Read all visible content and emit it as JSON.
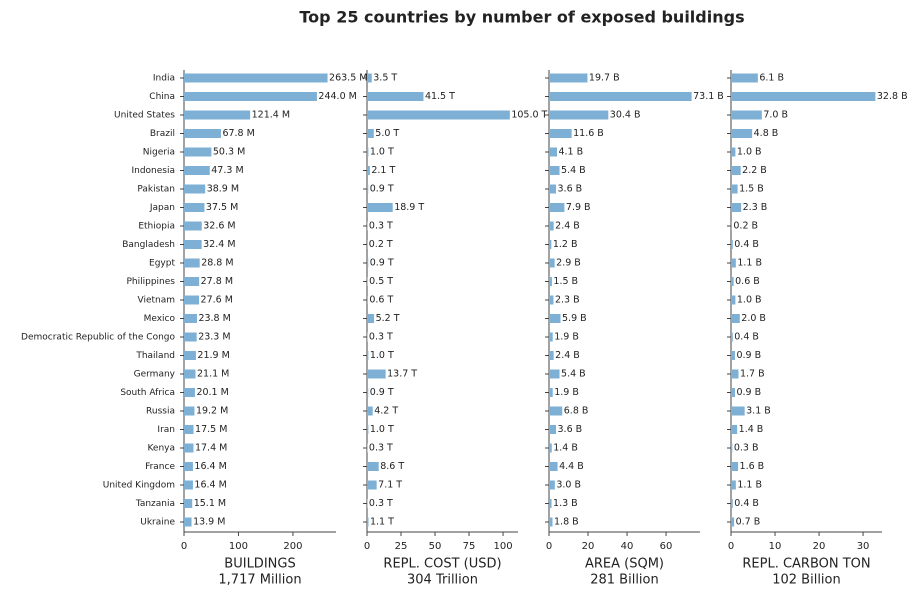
{
  "title": "Top 25 countries by number of exposed buildings",
  "chart_data": [
    {
      "type": "barh",
      "color": "#7eb0d5",
      "xlabel": "BUILDINGS",
      "xlabel_total": "1,717 Million",
      "categories": [
        "India",
        "China",
        "United States",
        "Brazil",
        "Nigeria",
        "Indonesia",
        "Pakistan",
        "Japan",
        "Ethiopia",
        "Bangladesh",
        "Egypt",
        "Philippines",
        "Vietnam",
        "Mexico",
        "Democratic Republic of the Congo",
        "Thailand",
        "Germany",
        "South Africa",
        "Russia",
        "Iran",
        "Kenya",
        "France",
        "United Kingdom",
        "Tanzania",
        "Ukraine"
      ],
      "values": [
        263.5,
        244.0,
        121.4,
        67.8,
        50.3,
        47.3,
        38.9,
        37.5,
        32.6,
        32.4,
        28.8,
        27.8,
        27.6,
        23.8,
        23.3,
        21.9,
        21.1,
        20.1,
        19.2,
        17.5,
        17.4,
        16.4,
        16.4,
        15.1,
        13.9
      ],
      "value_labels": [
        "263.5 M",
        "244.0 M",
        "121.4 M",
        "67.8 M",
        "50.3 M",
        "47.3 M",
        "38.9 M",
        "37.5 M",
        "32.6 M",
        "32.4 M",
        "28.8 M",
        "27.8 M",
        "27.6 M",
        "23.8 M",
        "23.3 M",
        "21.9 M",
        "21.1 M",
        "20.1 M",
        "19.2 M",
        "17.5 M",
        "17.4 M",
        "16.4 M",
        "16.4 M",
        "15.1 M",
        "13.9 M"
      ],
      "xlim": [
        0,
        279
      ],
      "xticks": [
        0,
        100,
        200
      ]
    },
    {
      "type": "barh",
      "color": "#7eb0d5",
      "xlabel": "REPL. COST (USD)",
      "xlabel_total": "304 Trillion",
      "values": [
        3.5,
        41.5,
        105.0,
        5.0,
        1.0,
        2.1,
        0.9,
        18.9,
        0.3,
        0.2,
        0.9,
        0.5,
        0.6,
        5.2,
        0.3,
        1.0,
        13.7,
        0.9,
        4.2,
        1.0,
        0.3,
        8.6,
        7.1,
        0.3,
        1.1
      ],
      "value_labels": [
        "3.5 T",
        "41.5 T",
        "105.0 T",
        "5.0 T",
        "1.0 T",
        "2.1 T",
        "0.9 T",
        "18.9 T",
        "0.3 T",
        "0.2 T",
        "0.9 T",
        "0.5 T",
        "0.6 T",
        "5.2 T",
        "0.3 T",
        "1.0 T",
        "13.7 T",
        "0.9 T",
        "4.2 T",
        "1.0 T",
        "0.3 T",
        "8.6 T",
        "7.1 T",
        "0.3 T",
        "1.1 T"
      ],
      "xlim": [
        0,
        111
      ],
      "xticks": [
        0,
        25,
        50,
        75,
        100
      ]
    },
    {
      "type": "barh",
      "color": "#7eb0d5",
      "xlabel": "AREA (SQM)",
      "xlabel_total": "281 Billion",
      "values": [
        19.7,
        73.1,
        30.4,
        11.6,
        4.1,
        5.4,
        3.6,
        7.9,
        2.4,
        1.2,
        2.9,
        1.5,
        2.3,
        5.9,
        1.9,
        2.4,
        5.4,
        1.9,
        6.8,
        3.6,
        1.4,
        4.4,
        3.0,
        1.3,
        1.8
      ],
      "value_labels": [
        "19.7 B",
        "73.1 B",
        "30.4 B",
        "11.6 B",
        "4.1 B",
        "5.4 B",
        "3.6 B",
        "7.9 B",
        "2.4 B",
        "1.2 B",
        "2.9 B",
        "1.5 B",
        "2.3 B",
        "5.9 B",
        "1.9 B",
        "2.4 B",
        "5.4 B",
        "1.9 B",
        "6.8 B",
        "3.6 B",
        "1.4 B",
        "4.4 B",
        "3.0 B",
        "1.3 B",
        "1.8 B"
      ],
      "xlim": [
        0,
        77.4
      ],
      "xticks": [
        0,
        20,
        40,
        60
      ]
    },
    {
      "type": "barh",
      "color": "#7eb0d5",
      "xlabel": "REPL. CARBON TON",
      "xlabel_total": "102 Billion",
      "values": [
        6.1,
        32.8,
        7.0,
        4.8,
        1.0,
        2.2,
        1.5,
        2.3,
        0.2,
        0.4,
        1.1,
        0.6,
        1.0,
        2.0,
        0.4,
        0.9,
        1.7,
        0.9,
        3.1,
        1.4,
        0.3,
        1.6,
        1.1,
        0.4,
        0.7
      ],
      "value_labels": [
        "6.1 B",
        "32.8 B",
        "7.0 B",
        "4.8 B",
        "1.0 B",
        "2.2 B",
        "1.5 B",
        "2.3 B",
        "0.2 B",
        "0.4 B",
        "1.1 B",
        "0.6 B",
        "1.0 B",
        "2.0 B",
        "0.4 B",
        "0.9 B",
        "1.7 B",
        "0.9 B",
        "3.1 B",
        "1.4 B",
        "0.3 B",
        "1.6 B",
        "1.1 B",
        "0.4 B",
        "0.7 B"
      ],
      "xlim": [
        0,
        34.3
      ],
      "xticks": [
        0,
        10,
        20,
        30
      ]
    }
  ]
}
